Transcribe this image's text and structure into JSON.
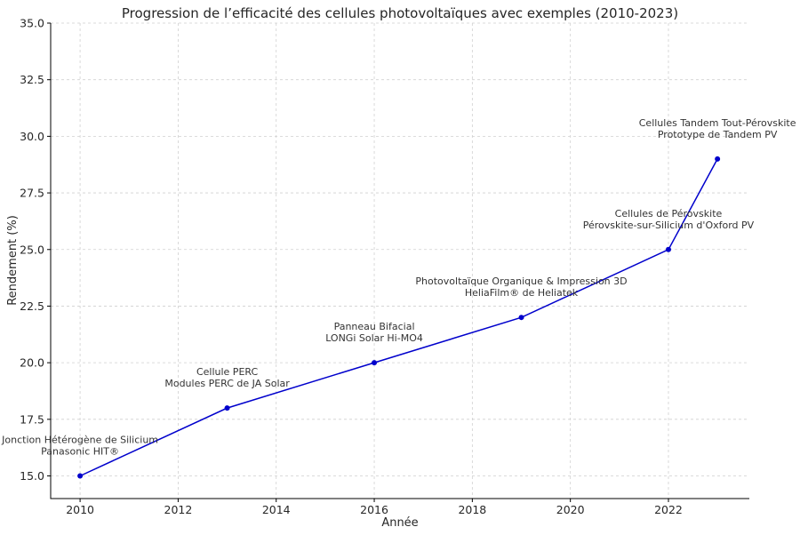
{
  "chart_data": {
    "type": "line",
    "title": "Progression de l’efficacité des cellules photovoltaïques avec exemples (2010-2023)",
    "xlabel": "Année",
    "ylabel": "Rendement (%)",
    "xlim": [
      2009.4,
      2023.65
    ],
    "ylim": [
      14.0,
      35.0
    ],
    "xticks": [
      "2010",
      "2012",
      "2014",
      "2016",
      "2018",
      "2020",
      "2022"
    ],
    "yticks": [
      "15.0",
      "17.5",
      "20.0",
      "22.5",
      "25.0",
      "27.5",
      "30.0",
      "32.5",
      "35.0"
    ],
    "grid": true,
    "series": [
      {
        "color": "#0000cc",
        "x": [
          2010,
          2013,
          2016,
          2019,
          2022,
          2023
        ],
        "y": [
          15.0,
          18.0,
          20.0,
          22.0,
          25.0,
          29.0
        ]
      }
    ],
    "annotations": [
      {
        "x": 2010,
        "y": 15.0,
        "lines": [
          "Jonction Hétérogène de Silicium",
          "Panasonic HIT®"
        ]
      },
      {
        "x": 2013,
        "y": 18.0,
        "lines": [
          "Cellule PERC",
          "Modules PERC de JA Solar"
        ]
      },
      {
        "x": 2016,
        "y": 20.0,
        "lines": [
          "Panneau Bifacial",
          "LONGi Solar Hi-MO4"
        ]
      },
      {
        "x": 2019,
        "y": 22.0,
        "lines": [
          "Photovoltaïque Organique & Impression 3D",
          "HeliaFilm® de Heliatek"
        ]
      },
      {
        "x": 2022,
        "y": 25.0,
        "lines": [
          "Cellules de Pérovskite",
          "Pérovskite-sur-Silicium d'Oxford PV"
        ]
      },
      {
        "x": 2023,
        "y": 29.0,
        "lines": [
          "Cellules Tandem Tout-Pérovskite",
          "Prototype de Tandem PV"
        ]
      }
    ]
  }
}
